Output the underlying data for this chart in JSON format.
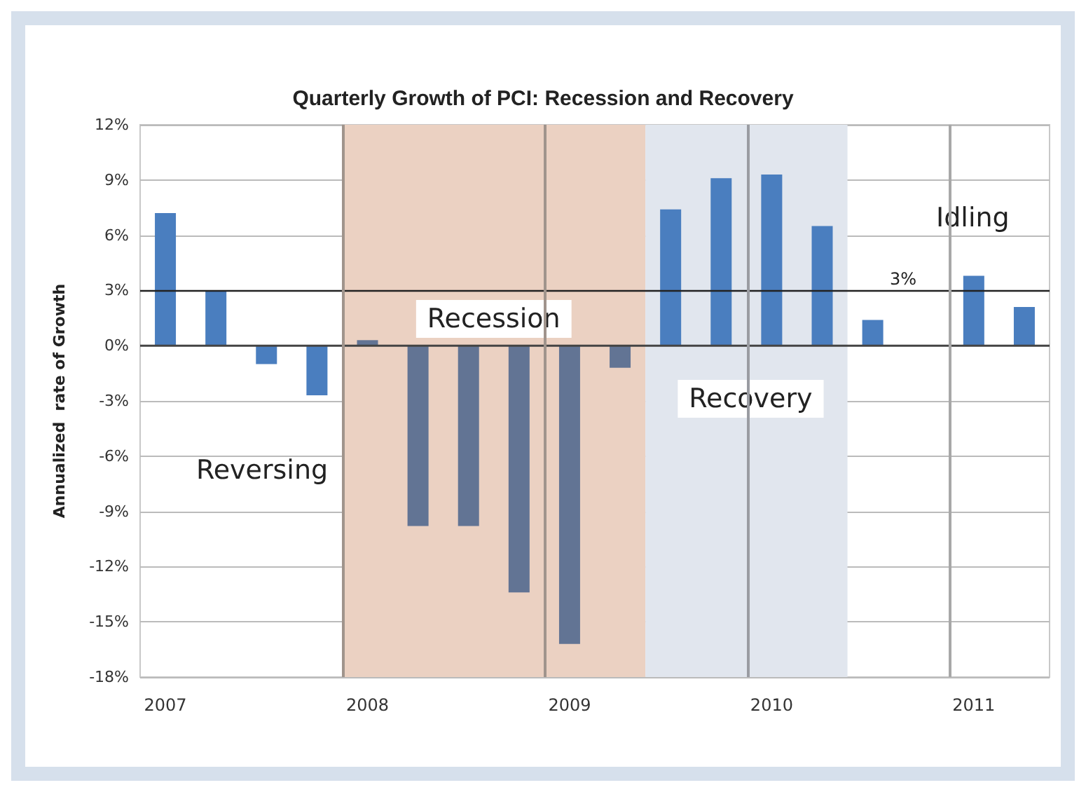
{
  "chart_data": {
    "type": "bar",
    "title": "Quarterly Growth of PCI: Recession and Recovery",
    "ylabel": "Annualized  rate of Growth",
    "x": [
      2007,
      2007.25,
      2007.5,
      2007.75,
      2008,
      2008.25,
      2008.5,
      2008.75,
      2009,
      2009.25,
      2009.5,
      2009.75,
      2010,
      2010.25,
      2010.5,
      2010.75,
      2011,
      2011.25
    ],
    "values": [
      7.2,
      3.0,
      -1.0,
      -2.7,
      0.3,
      -9.8,
      -9.8,
      -13.4,
      -16.2,
      -1.2,
      7.4,
      9.1,
      9.3,
      6.5,
      1.4,
      0.0,
      3.8,
      2.1
    ],
    "colors": [
      "#4a7ebf",
      "#4a7ebf",
      "#4a7ebf",
      "#4a7ebf",
      "#627494",
      "#627494",
      "#627494",
      "#627494",
      "#627494",
      "#627494",
      "#4a7ebf",
      "#4a7ebf",
      "#4a7ebf",
      "#4a7ebf",
      "#4a7ebf",
      "#4a7ebf",
      "#4a7ebf",
      "#4a7ebf"
    ],
    "xlim": [
      2006.875,
      2011.375
    ],
    "xticks": [
      2007,
      2008,
      2009,
      2010,
      2011
    ],
    "ylim": [
      -18,
      12
    ],
    "yticks": [
      {
        "value": -18,
        "label": "-18%"
      },
      {
        "value": -15,
        "label": "-15%"
      },
      {
        "value": -12,
        "label": "-12%"
      },
      {
        "value": -9,
        "label": "-9%"
      },
      {
        "value": -6,
        "label": "-6%"
      },
      {
        "value": -3,
        "label": "-3%"
      },
      {
        "value": 0,
        "label": "0%"
      },
      {
        "value": 3,
        "label": "3%"
      },
      {
        "value": 6,
        "label": "6%"
      },
      {
        "value": 9,
        "label": "9%"
      },
      {
        "value": 12,
        "label": "12%"
      }
    ],
    "grid": "y",
    "ref_lines": [
      {
        "axis": "y",
        "value": 3,
        "label": "3%",
        "color": "#222222"
      },
      {
        "axis": "x",
        "value": 2007.875,
        "label": null,
        "color": "#a0948c"
      },
      {
        "axis": "x",
        "value": 2008.875,
        "label": null,
        "color": "#a0948c"
      },
      {
        "axis": "x",
        "value": 2009.875,
        "label": null,
        "color": "#9a9ca2"
      },
      {
        "axis": "x",
        "value": 2010.875,
        "label": null,
        "color": "#a8a8a8"
      }
    ],
    "bands": [
      {
        "axis": "x",
        "from": 2007.875,
        "to": 2009.375,
        "label": "Recession",
        "color": "#ebd1c2"
      },
      {
        "axis": "x",
        "from": 2009.375,
        "to": 2010.375,
        "label": "Recovery",
        "color": "#e1e6ee"
      }
    ],
    "annotations": [
      "Reversing",
      "Idling"
    ]
  }
}
